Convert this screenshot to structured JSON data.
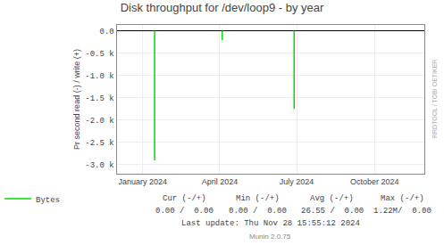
{
  "chart_data": {
    "type": "stem",
    "title": "Disk throughput for /dev/loop9 - by year",
    "y_label": "Pr second read (-) / write (+)",
    "x": [
      1705276800,
      1712188800,
      1719532800
    ],
    "series": [
      {
        "name": "Bytes",
        "color": "#00dd00",
        "values": [
          -2900,
          -210,
          -1750
        ]
      }
    ],
    "xlim": [
      1701388800,
      1732838400
    ],
    "xticks": [
      {
        "value": 1704067200,
        "label": "January 2024"
      },
      {
        "value": 1711929600,
        "label": "April 2024"
      },
      {
        "value": 1719792000,
        "label": "July 2024"
      },
      {
        "value": 1727740800,
        "label": "October 2024"
      }
    ],
    "ylim": [
      -3200,
      130
    ],
    "yticks": [
      {
        "value": 0,
        "label": "0.0"
      },
      {
        "value": -500,
        "label": "-0.5 k"
      },
      {
        "value": -1000,
        "label": "-1.0 k"
      },
      {
        "value": -1500,
        "label": "-1.5 k"
      },
      {
        "value": -2000,
        "label": "-2.0 k"
      },
      {
        "value": -2500,
        "label": "-2.5 k"
      },
      {
        "value": -3000,
        "label": "-3.0 k"
      }
    ],
    "grid": true,
    "legend": "bottom",
    "annotations": {
      "watermark": "RRDTOOL / TOBI OETIKER",
      "stats_header": [
        "Cur (-/+)",
        "Min (-/+)",
        "Avg (-/+)",
        "Max (-/+)"
      ],
      "stats_values": [
        "0.00 /  0.00",
        "0.00 /  0.00",
        "26.55 /  0.00",
        "1.22M/  0.00"
      ],
      "footer": [
        "Last update: Thu Nov 28 15:55:12 2024",
        "Munin 2.0.75"
      ]
    }
  }
}
